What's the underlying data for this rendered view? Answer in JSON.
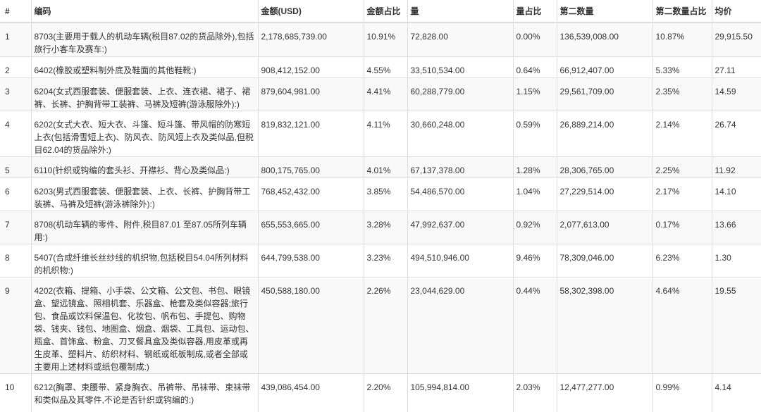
{
  "headers": [
    "#",
    "编码",
    "金额(USD)",
    "金额占比",
    "量",
    "量占比",
    "第二数量",
    "第二数量占比",
    "均价"
  ],
  "rows": [
    {
      "no": "1",
      "code": "8703(主要用于载人的机动车辆(税目87.02的货品除外),包括旅行小客车及赛车:)",
      "amount": "2,178,685,739.00",
      "amount_pct": "10.91%",
      "qty": "72,828.00",
      "qty_pct": "0.00%",
      "qty2": "136,539,008.00",
      "qty2_pct": "10.87%",
      "avg": "29,915.50"
    },
    {
      "no": "2",
      "code": "6402(橡胶或塑料制外底及鞋面的其他鞋靴:)",
      "amount": "908,412,152.00",
      "amount_pct": "4.55%",
      "qty": "33,510,534.00",
      "qty_pct": "0.64%",
      "qty2": "66,912,407.00",
      "qty2_pct": "5.33%",
      "avg": "27.11"
    },
    {
      "no": "3",
      "code": "6204(女式西服套装、便服套装、上衣、连衣裙、裙子、裙裤、长裤、护胸背带工装裤、马裤及短裤(游泳服除外):)",
      "amount": "879,604,981.00",
      "amount_pct": "4.41%",
      "qty": "60,288,779.00",
      "qty_pct": "1.15%",
      "qty2": "29,561,709.00",
      "qty2_pct": "2.35%",
      "avg": "14.59"
    },
    {
      "no": "4",
      "code": "6202(女式大衣、短大衣、斗篷、短斗篷、带风帽的防寒短上衣(包括滑雪短上衣)、防风衣、防风短上衣及类似品,但税目62.04的货品除外:)",
      "amount": "819,832,121.00",
      "amount_pct": "4.11%",
      "qty": "30,660,248.00",
      "qty_pct": "0.59%",
      "qty2": "26,889,214.00",
      "qty2_pct": "2.14%",
      "avg": "26.74"
    },
    {
      "no": "5",
      "code": "6110(针织或钩编的套头衫、开襟衫、背心及类似品:)",
      "amount": "800,175,765.00",
      "amount_pct": "4.01%",
      "qty": "67,137,378.00",
      "qty_pct": "1.28%",
      "qty2": "28,306,765.00",
      "qty2_pct": "2.25%",
      "avg": "11.92"
    },
    {
      "no": "6",
      "code": "6203(男式西服套装、便服套装、上衣、长裤、护胸背带工装裤、马裤及短裤(游泳裤除外):)",
      "amount": "768,452,432.00",
      "amount_pct": "3.85%",
      "qty": "54,486,570.00",
      "qty_pct": "1.04%",
      "qty2": "27,229,514.00",
      "qty2_pct": "2.17%",
      "avg": "14.10"
    },
    {
      "no": "7",
      "code": "8708(机动车辆的零件、附件,税目87.01 至87.05所列车辆用:)",
      "amount": "655,553,665.00",
      "amount_pct": "3.28%",
      "qty": "47,992,637.00",
      "qty_pct": "0.92%",
      "qty2": "2,077,613.00",
      "qty2_pct": "0.17%",
      "avg": "13.66"
    },
    {
      "no": "8",
      "code": "5407(合成纤维长丝纱线的机织物,包括税目54.04所列材料的机织物:)",
      "amount": "644,799,538.00",
      "amount_pct": "3.23%",
      "qty": "494,510,946.00",
      "qty_pct": "9.46%",
      "qty2": "78,309,046.00",
      "qty2_pct": "6.23%",
      "avg": "1.30"
    },
    {
      "no": "9",
      "code": "4202(衣箱、提箱、小手袋、公文箱、公文包、书包、眼镜盒、望远镜盒、照相机套、乐器盒、枪套及类似容器;旅行包、食品或饮料保温包、化妆包、帆布包、手提包、购物袋、钱夹、钱包、地图盒、烟盒、烟袋、工具包、运动包、瓶盒、首饰盒、粉盒、刀叉餐具盒及类似容器,用皮革或再生皮革、塑料片、纺织材料、钢纸或纸板制成,或者全部或主要用上述材料或纸包覆制成:)",
      "amount": "450,588,180.00",
      "amount_pct": "2.26%",
      "qty": "23,044,629.00",
      "qty_pct": "0.44%",
      "qty2": "58,302,398.00",
      "qty2_pct": "4.64%",
      "avg": "19.55"
    },
    {
      "no": "10",
      "code": "6212(胸罩、束腰带、紧身胸衣、吊裤带、吊袜带、束袜带和类似品及其零件,不论是否针织或钩编的:)",
      "amount": "439,086,454.00",
      "amount_pct": "2.20%",
      "qty": "105,994,814.00",
      "qty_pct": "2.03%",
      "qty2": "12,477,277.00",
      "qty2_pct": "0.99%",
      "avg": "4.14"
    }
  ]
}
